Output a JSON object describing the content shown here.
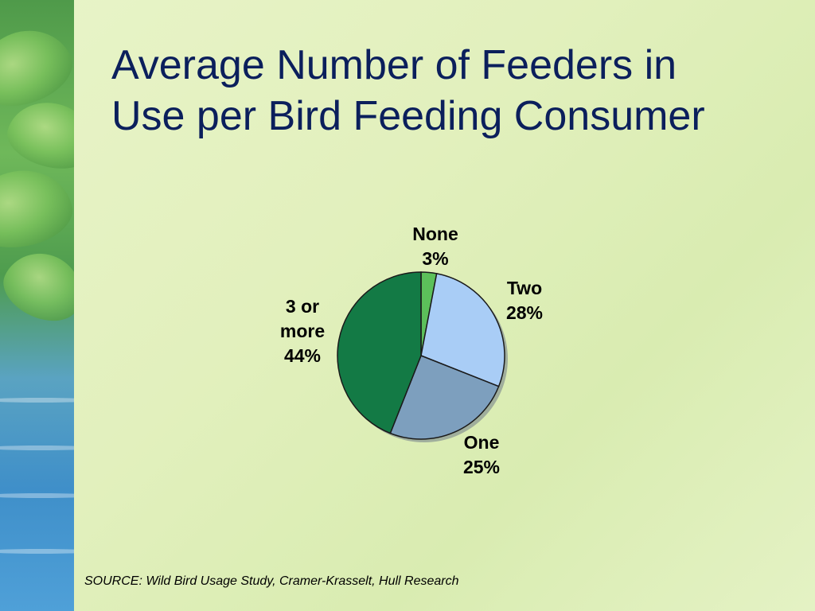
{
  "slide": {
    "title_line1": "Average Number of Feeders in",
    "title_line2": "Use per Bird Feeding Consumer",
    "source": "SOURCE: Wild Bird Usage Study, Cramer-Krasselt, Hull Research"
  },
  "chart_data": {
    "type": "pie",
    "slices": [
      {
        "label": "None",
        "value": 3,
        "value_label": "3%",
        "color": "#5cc05a"
      },
      {
        "label": "Two",
        "value": 28,
        "value_label": "28%",
        "color": "#a9cdf6"
      },
      {
        "label": "One",
        "value": 25,
        "value_label": "25%",
        "color": "#7d9fbe"
      },
      {
        "label": "3 or more",
        "value": 44,
        "value_label": "44%",
        "color": "#137a45"
      }
    ],
    "start": "top, clockwise",
    "legend": "none"
  }
}
